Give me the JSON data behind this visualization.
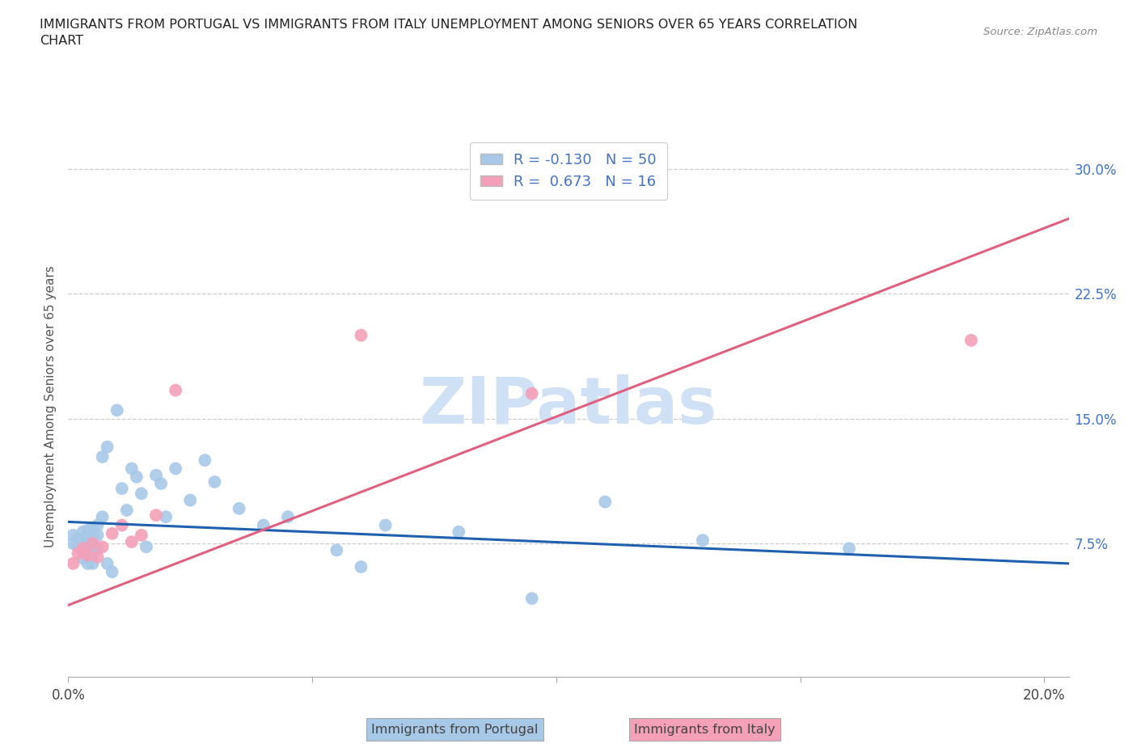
{
  "title": "IMMIGRANTS FROM PORTUGAL VS IMMIGRANTS FROM ITALY UNEMPLOYMENT AMONG SENIORS OVER 65 YEARS CORRELATION\nCHART",
  "source": "Source: ZipAtlas.com",
  "ylabel": "Unemployment Among Seniors over 65 years",
  "xlim": [
    0.0,
    0.205
  ],
  "ylim": [
    -0.005,
    0.32
  ],
  "xticks": [
    0.0,
    0.05,
    0.1,
    0.15,
    0.2
  ],
  "xtick_labels": [
    "0.0%",
    "",
    "",
    "",
    "20.0%"
  ],
  "yticks_right": [
    0.075,
    0.15,
    0.225,
    0.3
  ],
  "ytick_labels_right": [
    "7.5%",
    "15.0%",
    "22.5%",
    "30.0%"
  ],
  "r_portugal": -0.13,
  "n_portugal": 50,
  "r_italy": 0.673,
  "n_italy": 16,
  "color_portugal": "#a8c8e8",
  "color_italy": "#f4a0b8",
  "line_color_portugal": "#2060b0",
  "line_color_italy": "#e06080",
  "watermark": "ZIPatlas",
  "watermark_color": "#d0e0f5",
  "portugal_x": [
    0.001,
    0.001,
    0.002,
    0.002,
    0.003,
    0.003,
    0.003,
    0.003,
    0.004,
    0.004,
    0.004,
    0.004,
    0.005,
    0.005,
    0.005,
    0.005,
    0.005,
    0.006,
    0.006,
    0.006,
    0.007,
    0.007,
    0.008,
    0.008,
    0.009,
    0.01,
    0.011,
    0.012,
    0.013,
    0.014,
    0.015,
    0.016,
    0.018,
    0.019,
    0.02,
    0.022,
    0.025,
    0.028,
    0.03,
    0.035,
    0.04,
    0.045,
    0.055,
    0.06,
    0.065,
    0.08,
    0.095,
    0.11,
    0.13,
    0.16
  ],
  "portugal_y": [
    0.08,
    0.075,
    0.078,
    0.073,
    0.082,
    0.076,
    0.071,
    0.066,
    0.083,
    0.077,
    0.072,
    0.063,
    0.084,
    0.079,
    0.074,
    0.068,
    0.063,
    0.086,
    0.08,
    0.072,
    0.127,
    0.091,
    0.133,
    0.063,
    0.058,
    0.155,
    0.108,
    0.095,
    0.12,
    0.115,
    0.105,
    0.073,
    0.116,
    0.111,
    0.091,
    0.12,
    0.101,
    0.125,
    0.112,
    0.096,
    0.086,
    0.091,
    0.071,
    0.061,
    0.086,
    0.082,
    0.042,
    0.1,
    0.077,
    0.072
  ],
  "italy_x": [
    0.001,
    0.002,
    0.003,
    0.004,
    0.005,
    0.006,
    0.007,
    0.009,
    0.011,
    0.013,
    0.015,
    0.018,
    0.022,
    0.06,
    0.095,
    0.185
  ],
  "italy_y": [
    0.063,
    0.069,
    0.072,
    0.068,
    0.075,
    0.067,
    0.073,
    0.081,
    0.086,
    0.076,
    0.08,
    0.092,
    0.167,
    0.2,
    0.165,
    0.197
  ],
  "portugal_trend_x": [
    0.0,
    0.205
  ],
  "portugal_trend_y": [
    0.088,
    0.063
  ],
  "italy_trend_x": [
    0.0,
    0.205
  ],
  "italy_trend_y": [
    0.038,
    0.27
  ]
}
